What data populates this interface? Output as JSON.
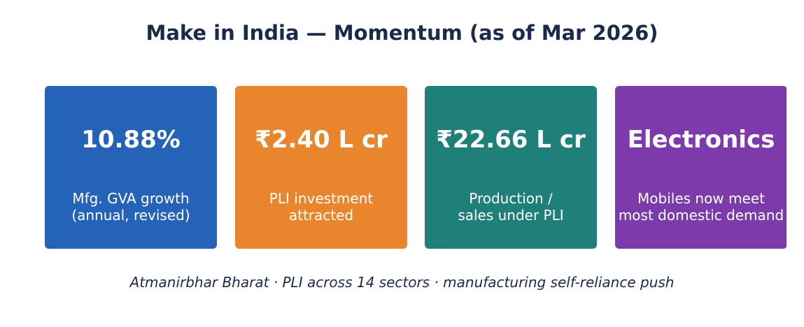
{
  "title": "Make in India — Momentum (as of Mar 2026)",
  "cards": [
    {
      "value": "10.88%",
      "label": [
        "Mfg. GVA growth",
        "(annual, revised)"
      ],
      "color": "#2563b8"
    },
    {
      "value": "₹2.40 L cr",
      "label": [
        "PLI investment",
        "attracted"
      ],
      "color": "#e8852d"
    },
    {
      "value": "₹22.66 L cr",
      "label": [
        "Production /",
        "sales under PLI"
      ],
      "color": "#1f7f79"
    },
    {
      "value": "Electronics",
      "label": [
        "Mobiles now meet",
        "most domestic demand"
      ],
      "color": "#7c3aab"
    }
  ],
  "footer": "Atmanirbhar Bharat · PLI across 14 sectors · manufacturing self-reliance push"
}
